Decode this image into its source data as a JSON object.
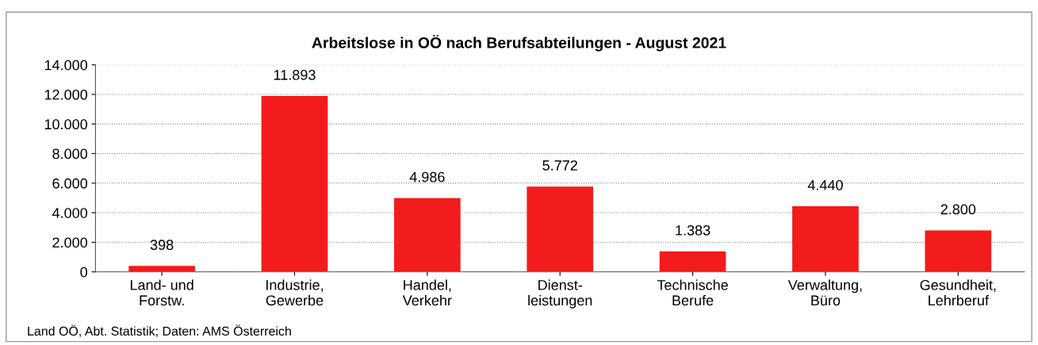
{
  "chart_data": {
    "type": "bar",
    "title": "Arbeitslose in OÖ nach Berufsabteilungen - August 2021",
    "categories": [
      "Land- und\nForstw.",
      "Industrie,\nGewerbe",
      "Handel,\nVerkehr",
      "Dienst-\nleistungen",
      "Technische\nBerufe",
      "Verwaltung,\nBüro",
      "Gesundheit,\nLehrberuf"
    ],
    "values": [
      398,
      11893,
      4986,
      5772,
      1383,
      4440,
      2800
    ],
    "value_labels": [
      "398",
      "11.893",
      "4.986",
      "5.772",
      "1.383",
      "4.440",
      "2.800"
    ],
    "color": "#f21c1c",
    "ylim": [
      0,
      14000
    ],
    "yticks": [
      0,
      {
        "value": 2000,
        "label": "2.000"
      },
      {
        "value": 4000,
        "label": "4.000"
      },
      {
        "value": 6000,
        "label": "6.000"
      },
      {
        "value": 8000,
        "label": "8.000"
      },
      {
        "value": 10000,
        "label": "10.000"
      },
      {
        "value": 12000,
        "label": "12.000"
      },
      {
        "value": 14000,
        "label": "14.000"
      }
    ],
    "grid": "y",
    "annotations": [
      "Land OÖ, Abt. Statistik; Daten: AMS Österreich"
    ]
  }
}
